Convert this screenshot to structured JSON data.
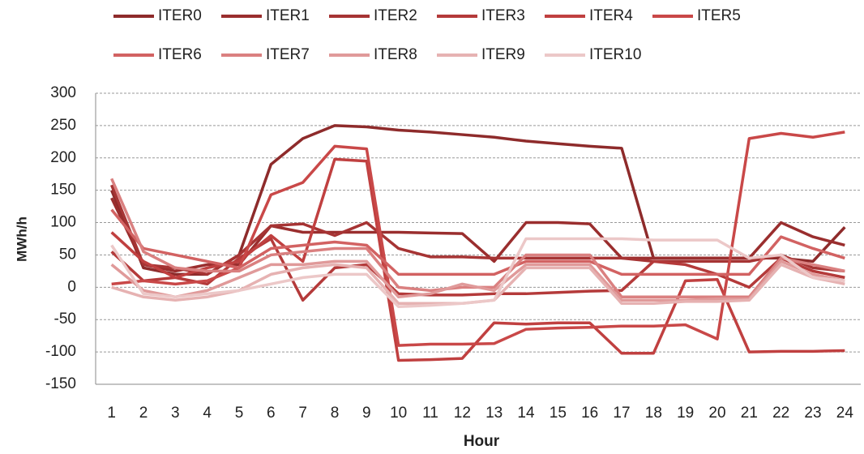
{
  "chart_data": {
    "type": "line",
    "x_label": "Hour",
    "y_label": "MWh/h",
    "categories": [
      1,
      2,
      3,
      4,
      5,
      6,
      7,
      8,
      9,
      10,
      11,
      12,
      13,
      14,
      15,
      16,
      17,
      18,
      19,
      20,
      21,
      22,
      23,
      24
    ],
    "ylim": [
      -150,
      300
    ],
    "yticks": [
      -150,
      -100,
      -50,
      0,
      50,
      100,
      150,
      200,
      250,
      300
    ],
    "grid": true,
    "legend": "top",
    "series": [
      {
        "name": "ITER0",
        "color": "#8e2b2b",
        "values": [
          150,
          30,
          20,
          20,
          50,
          190,
          230,
          250,
          248,
          243,
          240,
          236,
          232,
          226,
          222,
          218,
          215,
          45,
          45,
          45,
          45,
          45,
          40,
          93
        ]
      },
      {
        "name": "ITER1",
        "color": "#9a2e2e",
        "values": [
          138,
          35,
          25,
          35,
          35,
          95,
          85,
          85,
          85,
          85,
          84,
          83,
          40,
          100,
          100,
          98,
          45,
          45,
          45,
          45,
          45,
          100,
          78,
          65
        ]
      },
      {
        "name": "ITER2",
        "color": "#a63434",
        "values": [
          158,
          35,
          30,
          20,
          50,
          95,
          98,
          80,
          100,
          60,
          47,
          47,
          45,
          45,
          45,
          45,
          45,
          40,
          40,
          40,
          40,
          50,
          30,
          25
        ]
      },
      {
        "name": "ITER3",
        "color": "#b43a3a",
        "values": [
          55,
          10,
          15,
          5,
          45,
          75,
          -20,
          30,
          35,
          -10,
          -12,
          -12,
          -10,
          -10,
          -8,
          -6,
          -5,
          40,
          35,
          20,
          0,
          45,
          25,
          15
        ]
      },
      {
        "name": "ITER4",
        "color": "#c04040",
        "values": [
          85,
          40,
          15,
          30,
          40,
          80,
          40,
          198,
          195,
          -113,
          -112,
          -110,
          -55,
          -57,
          -55,
          -55,
          -102,
          -102,
          10,
          12,
          -100,
          -99,
          -99,
          -98
        ]
      },
      {
        "name": "ITER5",
        "color": "#c94848",
        "values": [
          5,
          10,
          5,
          10,
          30,
          143,
          162,
          218,
          214,
          -90,
          -88,
          -88,
          -87,
          -65,
          -63,
          -62,
          -60,
          -60,
          -58,
          -80,
          230,
          238,
          232,
          240
        ]
      },
      {
        "name": "ITER6",
        "color": "#d26262",
        "values": [
          120,
          60,
          50,
          40,
          30,
          60,
          65,
          70,
          65,
          20,
          20,
          20,
          20,
          40,
          40,
          40,
          20,
          20,
          20,
          20,
          20,
          78,
          60,
          45
        ]
      },
      {
        "name": "ITER7",
        "color": "#da8080",
        "values": [
          168,
          55,
          30,
          25,
          25,
          50,
          55,
          60,
          60,
          0,
          -5,
          0,
          0,
          50,
          50,
          50,
          -15,
          -15,
          -15,
          -15,
          -15,
          45,
          35,
          25
        ]
      },
      {
        "name": "ITER8",
        "color": "#e09a9a",
        "values": [
          35,
          -5,
          -15,
          -5,
          15,
          35,
          35,
          40,
          40,
          -15,
          -10,
          5,
          -5,
          35,
          35,
          35,
          -20,
          -20,
          -20,
          -18,
          -18,
          40,
          20,
          10
        ]
      },
      {
        "name": "ITER9",
        "color": "#e6b2b2",
        "values": [
          0,
          -15,
          -20,
          -15,
          -5,
          20,
          30,
          35,
          30,
          -25,
          -25,
          -25,
          -20,
          30,
          30,
          30,
          -25,
          -25,
          -22,
          -22,
          -20,
          35,
          15,
          5
        ]
      },
      {
        "name": "ITER10",
        "color": "#ecc8c8",
        "values": [
          65,
          -10,
          -15,
          -10,
          -5,
          5,
          15,
          20,
          20,
          -30,
          -28,
          -25,
          -20,
          75,
          75,
          75,
          75,
          73,
          73,
          73,
          45,
          50,
          15,
          10
        ]
      }
    ]
  }
}
